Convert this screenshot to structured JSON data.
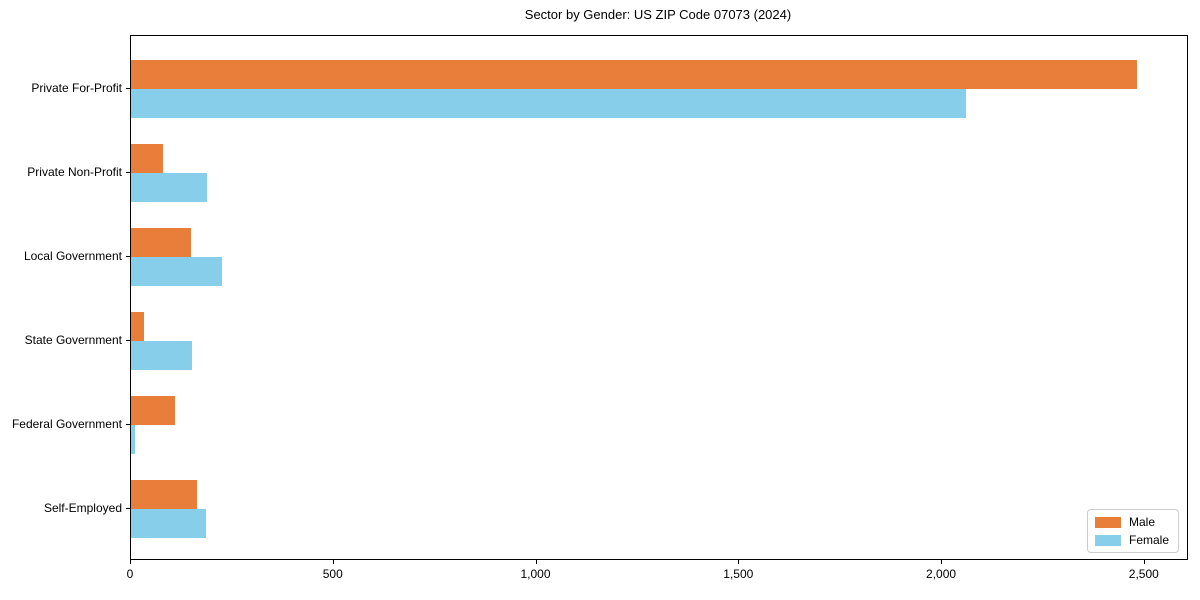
{
  "figure": {
    "background": "#ffffff",
    "axis_color": "#000000",
    "text_color": "#000000",
    "legend_border_color": "#cccccc"
  },
  "chart_data": {
    "type": "bar",
    "orientation": "horizontal",
    "title": "Sector by Gender: US ZIP Code 07073 (2024)",
    "categories": [
      "Private For-Profit",
      "Private Non-Profit",
      "Local Government",
      "State Government",
      "Federal Government",
      "Self-Employed"
    ],
    "series": [
      {
        "name": "Male",
        "color": "#E97E3B",
        "values": [
          2480,
          78,
          148,
          33,
          109,
          163
        ]
      },
      {
        "name": "Female",
        "color": "#87CEEB",
        "values": [
          2060,
          187,
          225,
          150,
          10,
          185
        ]
      }
    ],
    "xlabel": "",
    "ylabel": "",
    "xlim": [
      0,
      2604
    ],
    "xticks": [
      0,
      500,
      1000,
      1500,
      2000,
      2500
    ],
    "xtick_labels": [
      "0",
      "500",
      "1,000",
      "1,500",
      "2,000",
      "2,500"
    ],
    "grid": false,
    "legend_position": "lower right"
  }
}
